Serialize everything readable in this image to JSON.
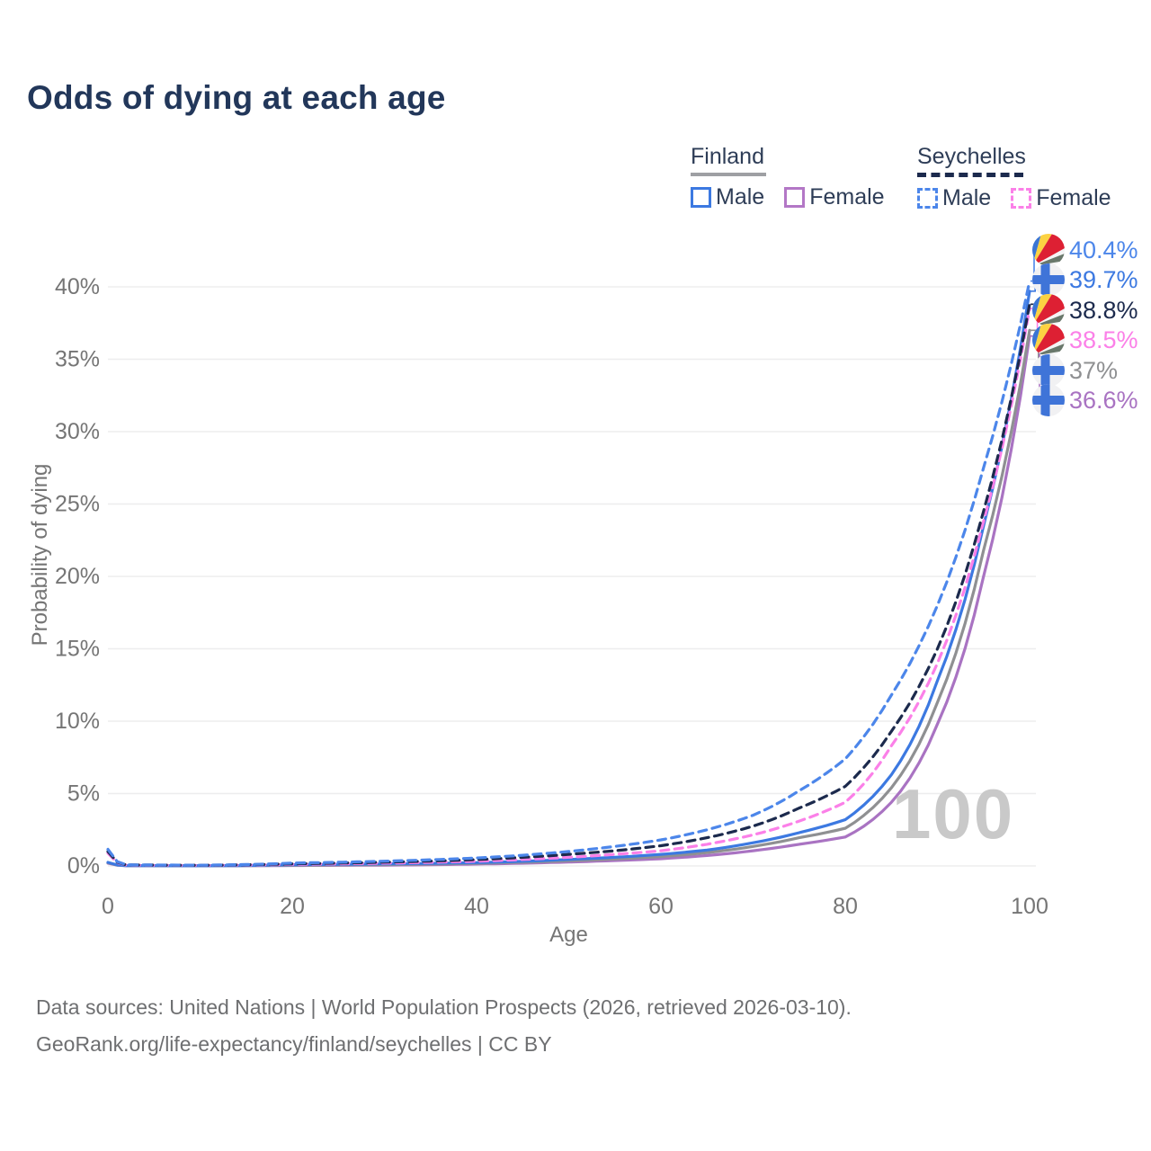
{
  "title": "Odds of dying at each age",
  "legend": {
    "groups": [
      {
        "label": "Finland",
        "line_style": "solid",
        "line_color": "#9e9fa3",
        "items": [
          {
            "label": "Male",
            "color": "#3c79e1"
          },
          {
            "label": "Female",
            "color": "#b377c6"
          }
        ]
      },
      {
        "label": "Seychelles",
        "line_style": "dashed",
        "line_color": "#1c2a4d",
        "items": [
          {
            "label": "Male",
            "color": "#4c86ea"
          },
          {
            "label": "Female",
            "color": "#fb80e8"
          }
        ]
      }
    ]
  },
  "chart_data": {
    "type": "line",
    "title": "Odds of dying at each age",
    "xlabel": "Age",
    "ylabel": "Probability of dying",
    "xlim": [
      0,
      100
    ],
    "ylim_pct": [
      0,
      40
    ],
    "grid": "horizontal",
    "x_ticks": [
      0,
      20,
      40,
      60,
      80,
      100
    ],
    "y_ticks_pct": [
      0,
      5,
      10,
      15,
      20,
      25,
      30,
      35,
      40
    ],
    "age_watermark": "100",
    "control_ages": [
      0,
      2,
      10,
      20,
      30,
      40,
      50,
      55,
      60,
      65,
      70,
      75,
      80,
      85,
      90,
      95,
      100
    ],
    "series": [
      {
        "name": "Finland Female",
        "country": "Finland",
        "sex": "Female",
        "style": "solid",
        "color": "#a973c2",
        "values_pct": [
          0.19,
          0.015,
          0.008,
          0.032,
          0.055,
          0.13,
          0.27,
          0.37,
          0.5,
          0.72,
          1.05,
          1.5,
          2.0,
          4.4,
          9.8,
          20.0,
          36.6
        ]
      },
      {
        "name": "Finland",
        "country": "Finland",
        "sex": "Both",
        "style": "solid",
        "color": "#8f9092",
        "values_pct": [
          0.22,
          0.018,
          0.01,
          0.055,
          0.095,
          0.18,
          0.36,
          0.48,
          0.65,
          0.92,
          1.35,
          1.95,
          2.6,
          5.4,
          11.3,
          21.8,
          37.0
        ]
      },
      {
        "name": "Finland Male",
        "country": "Finland",
        "sex": "Male",
        "style": "solid",
        "color": "#3c79e1",
        "values_pct": [
          0.25,
          0.02,
          0.012,
          0.09,
          0.14,
          0.23,
          0.45,
          0.6,
          0.8,
          1.1,
          1.6,
          2.3,
          3.2,
          6.3,
          12.8,
          23.5,
          39.7
        ]
      },
      {
        "name": "Seychelles Female",
        "country": "Seychelles",
        "sex": "Female",
        "style": "dashed",
        "color": "#fb80e8",
        "values_pct": [
          0.88,
          0.06,
          0.04,
          0.11,
          0.19,
          0.33,
          0.6,
          0.8,
          1.05,
          1.5,
          2.15,
          3.1,
          4.4,
          8.3,
          14.0,
          23.8,
          38.5
        ]
      },
      {
        "name": "Seychelles",
        "country": "Seychelles",
        "sex": "Both",
        "style": "dashed",
        "color": "#1c2a4d",
        "values_pct": [
          1.0,
          0.07,
          0.045,
          0.15,
          0.26,
          0.44,
          0.8,
          1.05,
          1.4,
          1.95,
          2.75,
          4.0,
          5.5,
          9.3,
          15.0,
          24.5,
          38.8
        ]
      },
      {
        "name": "Seychelles Male",
        "country": "Seychelles",
        "sex": "Male",
        "style": "dashed",
        "color": "#4c86ea",
        "values_pct": [
          1.15,
          0.08,
          0.05,
          0.2,
          0.33,
          0.55,
          1.0,
          1.35,
          1.8,
          2.5,
          3.5,
          5.2,
          7.4,
          11.8,
          18.0,
          27.5,
          40.4
        ]
      }
    ],
    "end_labels": [
      {
        "label": "40.4%",
        "value_pct": 40.4,
        "color": "#4c86ea",
        "flag": "seychelles",
        "series": "Seychelles Male"
      },
      {
        "label": "39.7%",
        "value_pct": 39.7,
        "color": "#3c79e1",
        "flag": "finland",
        "series": "Finland Male"
      },
      {
        "label": "38.8%",
        "value_pct": 38.8,
        "color": "#1c2a4d",
        "flag": "seychelles",
        "series": "Seychelles"
      },
      {
        "label": "38.5%",
        "value_pct": 38.5,
        "color": "#fb80e8",
        "flag": "seychelles",
        "series": "Seychelles Female"
      },
      {
        "label": "37%",
        "value_pct": 37.0,
        "color": "#8f9092",
        "flag": "finland",
        "series": "Finland"
      },
      {
        "label": "36.6%",
        "value_pct": 36.6,
        "color": "#a973c2",
        "flag": "finland",
        "series": "Finland Female"
      }
    ]
  },
  "footer": {
    "line1": "Data sources: United Nations | World Population Prospects (2026, retrieved 2026-03-10).",
    "line2": "GeoRank.org/life-expectancy/finland/seychelles | CC BY"
  },
  "colors": {
    "title": "#22375a",
    "axis_text": "#757575",
    "gridline": "#ededee",
    "watermark": "#c9c9c9"
  }
}
